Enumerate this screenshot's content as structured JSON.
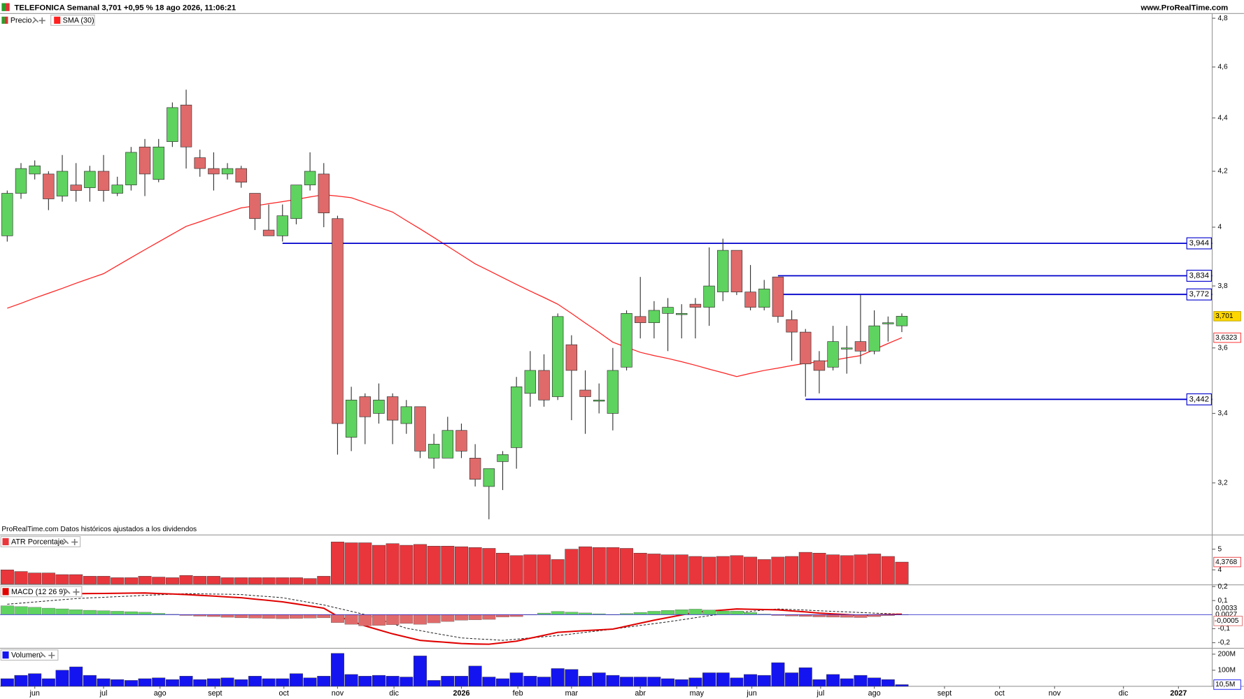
{
  "chart_data": [
    {
      "type": "candlestick",
      "title": "TELEFONICA Semanal 3,701 +0,95 % 18 ago 2026, 11:06:21",
      "source": "www.ProRealTime.com",
      "note": "ProRealTime.com Datos históricos ajustados a los dividendos",
      "log_scale": true,
      "ylim": [
        3.06,
        4.82
      ],
      "yticks": [
        {
          "value": 4.8,
          "label": "4,8"
        },
        {
          "value": 4.6,
          "label": "4,6"
        },
        {
          "value": 4.4,
          "label": "4,4"
        },
        {
          "value": 4.2,
          "label": "4,2"
        },
        4,
        {
          "value": 3.8,
          "label": "3,8"
        },
        {
          "value": 3.6,
          "label": "3,6"
        },
        {
          "value": 3.4,
          "label": "3,4"
        },
        {
          "value": 3.2,
          "label": "3,2"
        }
      ],
      "xlim": [
        -0.52,
        87.55
      ],
      "xticks": [
        {
          "value": 2,
          "label": "jun"
        },
        {
          "value": 7,
          "label": "jul"
        },
        {
          "value": 11.1,
          "label": "ago"
        },
        {
          "value": 15.1,
          "label": "sept"
        },
        {
          "value": 20.1,
          "label": "oct"
        },
        {
          "value": 24,
          "label": "nov"
        },
        {
          "value": 28.1,
          "label": "dic"
        },
        {
          "value": 33,
          "label": "2026"
        },
        {
          "value": 37.1,
          "label": "feb"
        },
        {
          "value": 41,
          "label": "mar"
        },
        {
          "value": 46,
          "label": "abr"
        },
        {
          "value": 50.1,
          "label": "may"
        },
        {
          "value": 54.1,
          "label": "jun"
        },
        {
          "value": 59.1,
          "label": "jul"
        },
        {
          "value": 63,
          "label": "ago"
        },
        {
          "value": 68.1,
          "label": "sept"
        },
        {
          "value": 72.1,
          "label": "oct"
        },
        {
          "value": 76.1,
          "label": "nov"
        },
        {
          "value": 81.1,
          "label": "dic"
        },
        {
          "value": 85.1,
          "label": "2027"
        }
      ],
      "candles": {
        "name": "Precio",
        "up_color": "#5fd35f",
        "down_color": "#e06a6a",
        "last_value_label": "3,701",
        "last_color": "#ffd700",
        "open": [
          3.97,
          4.12,
          4.19,
          4.19,
          4.11,
          4.15,
          4.14,
          4.2,
          4.12,
          4.15,
          4.29,
          4.17,
          4.31,
          4.45,
          4.25,
          4.21,
          4.19,
          4.21,
          4.12,
          3.99,
          3.97,
          4.03,
          4.15,
          4.19,
          4.03,
          3.33,
          3.45,
          3.4,
          3.45,
          3.37,
          3.42,
          3.27,
          3.27,
          3.35,
          3.27,
          3.19,
          3.26,
          3.3,
          3.46,
          3.53,
          3.45,
          3.61,
          3.47,
          3.44,
          3.4,
          3.54,
          3.7,
          3.68,
          3.71,
          3.71,
          3.74,
          3.73,
          3.78,
          3.92,
          3.78,
          3.73,
          3.83,
          3.69,
          3.65,
          3.56,
          3.54,
          3.6,
          3.62,
          3.59,
          3.68,
          3.67
        ],
        "high": [
          4.13,
          4.23,
          4.24,
          4.2,
          4.26,
          4.23,
          4.22,
          4.26,
          4.18,
          4.29,
          4.32,
          4.32,
          4.46,
          4.51,
          4.28,
          4.27,
          4.23,
          4.22,
          4.12,
          4.08,
          4.08,
          4.15,
          4.27,
          4.23,
          4.04,
          3.48,
          3.46,
          3.49,
          3.46,
          3.44,
          3.42,
          3.34,
          3.39,
          3.37,
          3.31,
          3.24,
          3.29,
          3.51,
          3.59,
          3.58,
          3.71,
          3.64,
          3.53,
          3.49,
          3.6,
          3.72,
          3.83,
          3.75,
          3.76,
          3.74,
          3.76,
          3.93,
          3.96,
          3.92,
          3.87,
          3.82,
          3.83,
          3.72,
          3.66,
          3.59,
          3.67,
          3.67,
          3.77,
          3.72,
          3.7,
          3.71
        ],
        "low": [
          3.95,
          4.1,
          4.17,
          4.06,
          4.09,
          4.09,
          4.09,
          4.09,
          4.11,
          4.13,
          4.11,
          4.16,
          4.29,
          4.21,
          4.18,
          4.13,
          4.17,
          4.14,
          3.99,
          3.97,
          3.95,
          4.01,
          4.13,
          4.0,
          3.28,
          3.29,
          3.31,
          3.37,
          3.31,
          3.34,
          3.27,
          3.24,
          3.27,
          3.27,
          3.19,
          3.1,
          3.18,
          3.24,
          3.42,
          3.42,
          3.44,
          3.38,
          3.34,
          3.4,
          3.35,
          3.53,
          3.63,
          3.63,
          3.59,
          3.63,
          3.63,
          3.67,
          3.75,
          3.77,
          3.72,
          3.72,
          3.68,
          3.56,
          3.45,
          3.46,
          3.53,
          3.52,
          3.55,
          3.58,
          3.62,
          3.65
        ],
        "close": [
          4.12,
          4.21,
          4.22,
          4.1,
          4.2,
          4.13,
          4.2,
          4.13,
          4.15,
          4.27,
          4.19,
          4.29,
          4.44,
          4.29,
          4.21,
          4.19,
          4.21,
          4.16,
          4.03,
          3.97,
          4.04,
          4.15,
          4.2,
          4.05,
          3.37,
          3.44,
          3.39,
          3.44,
          3.38,
          3.42,
          3.29,
          3.31,
          3.35,
          3.29,
          3.21,
          3.24,
          3.28,
          3.48,
          3.53,
          3.44,
          3.7,
          3.53,
          3.45,
          3.44,
          3.53,
          3.71,
          3.68,
          3.72,
          3.73,
          3.71,
          3.73,
          3.8,
          3.92,
          3.78,
          3.73,
          3.79,
          3.7,
          3.65,
          3.55,
          3.53,
          3.62,
          3.6,
          3.59,
          3.67,
          3.68,
          3.701
        ]
      },
      "sma": {
        "name": "SMA (30)",
        "color": "#ff2020",
        "last_value_label": "3,6323",
        "values": [
          3.727,
          3.743,
          3.76,
          3.776,
          3.792,
          3.809,
          3.825,
          3.841,
          3.868,
          3.895,
          3.922,
          3.949,
          3.976,
          4.003,
          4.019,
          4.036,
          4.052,
          4.068,
          4.075,
          4.083,
          4.09,
          4.098,
          4.107,
          4.115,
          4.11,
          4.104,
          4.087,
          4.07,
          4.053,
          4.023,
          3.994,
          3.964,
          3.934,
          3.904,
          3.874,
          3.851,
          3.828,
          3.805,
          3.783,
          3.762,
          3.74,
          3.71,
          3.679,
          3.649,
          3.618,
          3.602,
          3.586,
          3.576,
          3.567,
          3.557,
          3.546,
          3.534,
          3.523,
          3.511,
          3.521,
          3.53,
          3.537,
          3.545,
          3.552,
          3.557,
          3.561,
          3.569,
          3.576,
          3.595,
          3.614,
          3.6323
        ]
      },
      "level_color": "#0000cc",
      "levels": [
        {
          "value": 3.944,
          "label": "3,944",
          "x_start": 20
        },
        {
          "value": 3.834,
          "label": "3,834",
          "x_start": 56
        },
        {
          "value": 3.772,
          "label": "3,772",
          "x_start": 56
        },
        {
          "value": 3.442,
          "label": "3,442",
          "x_start": 58
        }
      ]
    },
    {
      "type": "bar",
      "ylim": [
        3.31,
        5.65
      ],
      "yticks": [
        4,
        5
      ],
      "series": [
        {
          "name": "ATR Porcentaje",
          "color": "#e8363c",
          "last_value_label": "4,3768",
          "values": [
            4.0,
            3.92,
            3.85,
            3.85,
            3.77,
            3.77,
            3.69,
            3.69,
            3.62,
            3.62,
            3.69,
            3.65,
            3.62,
            3.73,
            3.69,
            3.69,
            3.62,
            3.62,
            3.62,
            3.62,
            3.62,
            3.62,
            3.58,
            3.69,
            5.35,
            5.31,
            5.31,
            5.19,
            5.27,
            5.19,
            5.23,
            5.15,
            5.15,
            5.12,
            5.08,
            5.04,
            4.81,
            4.69,
            4.73,
            4.73,
            4.5,
            5.0,
            5.12,
            5.08,
            5.08,
            5.04,
            4.81,
            4.77,
            4.73,
            4.73,
            4.65,
            4.62,
            4.65,
            4.69,
            4.62,
            4.5,
            4.62,
            4.65,
            4.85,
            4.81,
            4.73,
            4.69,
            4.73,
            4.77,
            4.65,
            4.3768
          ]
        }
      ]
    },
    {
      "type": "macd",
      "ylim": [
        -0.234,
        0.206
      ],
      "yticks": [
        {
          "value": 0.2,
          "label": "0,2"
        },
        {
          "value": 0.1,
          "label": "0,1"
        },
        {
          "value": -0.1,
          "label": "-0,1"
        },
        {
          "value": -0.2,
          "label": "-0,2"
        }
      ],
      "zero_color": "#3030cc",
      "macd": {
        "name": "MACD (12 26 9)",
        "color": "#e00000",
        "last_value_label": "0,0027",
        "values": [
          0.137,
          0.139,
          0.142,
          0.144,
          0.147,
          0.149,
          0.15,
          0.151,
          0.152,
          0.153,
          0.154,
          0.15,
          0.147,
          0.143,
          0.137,
          0.132,
          0.126,
          0.12,
          0.11,
          0.101,
          0.091,
          0.076,
          0.061,
          0.046,
          -0.011,
          -0.046,
          -0.08,
          -0.109,
          -0.137,
          -0.16,
          -0.183,
          -0.191,
          -0.198,
          -0.206,
          -0.209,
          -0.211,
          -0.2,
          -0.189,
          -0.168,
          -0.147,
          -0.126,
          -0.12,
          -0.114,
          -0.109,
          -0.103,
          -0.082,
          -0.061,
          -0.04,
          -0.021,
          -0.002,
          0.017,
          0.025,
          0.032,
          0.04,
          0.038,
          0.036,
          0.034,
          0.026,
          0.019,
          0.011,
          0.005,
          0.0,
          -0.006,
          -0.003,
          0.0,
          0.0027
        ]
      },
      "signal": {
        "color": "#222222",
        "last_value_label": "0,0033",
        "values": [
          0.074,
          0.082,
          0.09,
          0.098,
          0.106,
          0.114,
          0.119,
          0.123,
          0.128,
          0.132,
          0.137,
          0.141,
          0.145,
          0.149,
          0.148,
          0.146,
          0.145,
          0.143,
          0.135,
          0.128,
          0.12,
          0.103,
          0.086,
          0.069,
          0.046,
          0.023,
          0.0,
          -0.032,
          -0.065,
          -0.097,
          -0.114,
          -0.132,
          -0.149,
          -0.166,
          -0.172,
          -0.177,
          -0.183,
          -0.175,
          -0.166,
          -0.158,
          -0.149,
          -0.138,
          -0.126,
          -0.115,
          -0.103,
          -0.09,
          -0.077,
          -0.064,
          -0.051,
          -0.037,
          -0.022,
          -0.008,
          0.006,
          0.015,
          0.023,
          0.032,
          0.04,
          0.036,
          0.032,
          0.027,
          0.023,
          0.019,
          0.015,
          0.011,
          0.007,
          0.0033
        ]
      },
      "histogram": {
        "up_color": "#5fd35f",
        "down_color": "#e06a6a",
        "last_value_label": "-0,0005",
        "values": [
          0.063,
          0.057,
          0.052,
          0.046,
          0.041,
          0.035,
          0.031,
          0.028,
          0.024,
          0.021,
          0.017,
          0.009,
          0.002,
          -0.006,
          -0.011,
          -0.014,
          -0.019,
          -0.023,
          -0.025,
          -0.027,
          -0.029,
          -0.027,
          -0.025,
          -0.023,
          -0.057,
          -0.069,
          -0.08,
          -0.077,
          -0.072,
          -0.063,
          -0.069,
          -0.059,
          -0.049,
          -0.04,
          -0.037,
          -0.034,
          -0.017,
          -0.014,
          -0.002,
          0.011,
          0.023,
          0.018,
          0.012,
          0.006,
          0.0,
          0.008,
          0.016,
          0.024,
          0.03,
          0.035,
          0.039,
          0.033,
          0.026,
          0.025,
          0.015,
          0.004,
          -0.006,
          -0.01,
          -0.013,
          -0.016,
          -0.018,
          -0.019,
          -0.021,
          -0.014,
          -0.007,
          -0.0005
        ]
      }
    },
    {
      "type": "bar",
      "ylim": [
        0,
        231600000
      ],
      "yticks": [
        {
          "value": 100000000,
          "label": "100M"
        },
        {
          "value": 200000000,
          "label": "200M"
        }
      ],
      "series": [
        {
          "name": "Volumen",
          "color": "#1414f0",
          "last_value_label": "10,5M",
          "values": [
            47400000,
            68400000,
            78900000,
            47400000,
            100000000,
            121000000,
            68400000,
            47400000,
            42100000,
            36800000,
            47400000,
            52600000,
            42100000,
            63200000,
            42100000,
            47400000,
            52600000,
            42100000,
            63200000,
            47400000,
            47400000,
            78900000,
            52600000,
            63200000,
            205000000,
            73700000,
            63200000,
            68400000,
            63200000,
            57900000,
            189000000,
            36800000,
            63200000,
            63200000,
            126000000,
            57900000,
            47400000,
            84200000,
            63200000,
            57900000,
            110500000,
            105000000,
            63200000,
            84200000,
            68400000,
            57900000,
            57900000,
            57900000,
            47400000,
            42100000,
            52600000,
            84200000,
            84200000,
            52600000,
            73700000,
            68400000,
            147000000,
            84200000,
            116000000,
            42100000,
            73700000,
            47400000,
            68400000,
            52600000,
            42100000,
            10500000
          ]
        }
      ]
    }
  ]
}
